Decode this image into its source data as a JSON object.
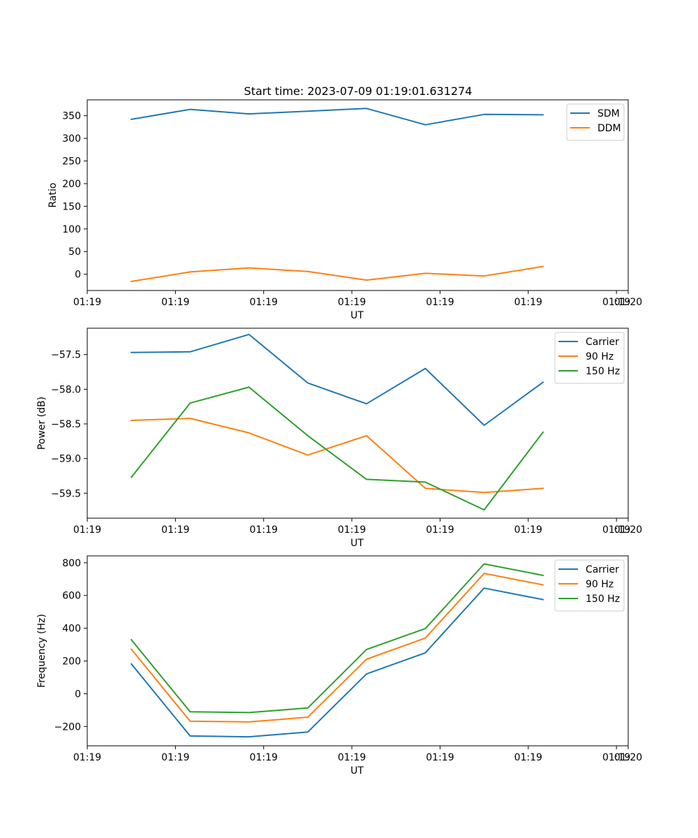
{
  "figure_title": "Start time: 2023-07-09 01:19:01.631274",
  "colors": {
    "blue": "#1f77b4",
    "orange": "#ff7f0e",
    "green": "#2ca02c"
  },
  "chart_data": [
    {
      "type": "line",
      "title": "Start time: 2023-07-09 01:19:01.631274",
      "xlabel": "UT",
      "ylabel": "Ratio",
      "x": [
        0,
        1,
        2,
        3,
        4,
        5,
        6,
        7
      ],
      "xlim": [
        -0.75,
        8.45
      ],
      "xticks": [
        -0.75,
        0.75,
        2.25,
        3.75,
        5.25,
        6.75,
        8.25
      ],
      "xtick_labels": [
        "01:19",
        "01:19",
        "01:19",
        "01:19",
        "01:19",
        "01:19",
        "01:19"
      ],
      "xticks_extra": [
        {
          "value": 8.45,
          "label": "01:20"
        }
      ],
      "ylim": [
        -36,
        385
      ],
      "yticks": [
        0,
        50,
        100,
        150,
        200,
        250,
        300,
        350
      ],
      "ytick_labels": [
        "0",
        "50",
        "100",
        "150",
        "200",
        "250",
        "300",
        "350"
      ],
      "legend": "top-right",
      "series": [
        {
          "name": "SDM",
          "color": "blue",
          "values": [
            342,
            364,
            354,
            360,
            366,
            330,
            353,
            352
          ]
        },
        {
          "name": "DDM",
          "color": "orange",
          "values": [
            -16,
            5,
            14,
            6,
            -13,
            2,
            -4,
            17
          ]
        }
      ]
    },
    {
      "type": "line",
      "title": "",
      "xlabel": "UT",
      "ylabel": "Power (dB)",
      "x": [
        0,
        1,
        2,
        3,
        4,
        5,
        6,
        7
      ],
      "xlim": [
        -0.75,
        8.45
      ],
      "xticks": [
        -0.75,
        0.75,
        2.25,
        3.75,
        5.25,
        6.75,
        8.25
      ],
      "xtick_labels": [
        "01:19",
        "01:19",
        "01:19",
        "01:19",
        "01:19",
        "01:19",
        "01:19"
      ],
      "xticks_extra": [
        {
          "value": 8.45,
          "label": "01:20"
        }
      ],
      "ylim": [
        -59.86,
        -57.12
      ],
      "yticks": [
        -59.5,
        -59.0,
        -58.5,
        -58.0,
        -57.5
      ],
      "ytick_labels": [
        "−59.5",
        "−59.0",
        "−58.5",
        "−58.0",
        "−57.5"
      ],
      "legend": "top-right",
      "series": [
        {
          "name": "Carrier",
          "color": "blue",
          "values": [
            -57.47,
            -57.46,
            -57.21,
            -57.91,
            -58.21,
            -57.7,
            -58.52,
            -57.9
          ]
        },
        {
          "name": "90 Hz",
          "color": "orange",
          "values": [
            -58.45,
            -58.42,
            -58.63,
            -58.95,
            -58.67,
            -59.43,
            -59.49,
            -59.43
          ]
        },
        {
          "name": "150 Hz",
          "color": "green",
          "values": [
            -59.27,
            -58.2,
            -57.97,
            -58.67,
            -59.3,
            -59.34,
            -59.74,
            -58.62
          ]
        }
      ]
    },
    {
      "type": "line",
      "title": "",
      "xlabel": "UT",
      "ylabel": "Frequency (Hz)",
      "x": [
        0,
        1,
        2,
        3,
        4,
        5,
        6,
        7
      ],
      "xlim": [
        -0.75,
        8.45
      ],
      "xticks": [
        -0.75,
        0.75,
        2.25,
        3.75,
        5.25,
        6.75,
        8.25
      ],
      "xtick_labels": [
        "01:19",
        "01:19",
        "01:19",
        "01:19",
        "01:19",
        "01:19",
        "01:19"
      ],
      "xticks_extra": [
        {
          "value": 8.45,
          "label": "01:20"
        }
      ],
      "ylim": [
        -318,
        842
      ],
      "yticks": [
        -200,
        0,
        200,
        400,
        600,
        800
      ],
      "ytick_labels": [
        "−200",
        "0",
        "200",
        "400",
        "600",
        "800"
      ],
      "legend": "top-right",
      "series": [
        {
          "name": "Carrier",
          "color": "blue",
          "values": [
            182,
            -258,
            -263,
            -234,
            121,
            250,
            645,
            575
          ]
        },
        {
          "name": "90 Hz",
          "color": "orange",
          "values": [
            272,
            -168,
            -172,
            -143,
            211,
            340,
            735,
            665
          ]
        },
        {
          "name": "150 Hz",
          "color": "green",
          "values": [
            330,
            -110,
            -115,
            -87,
            270,
            398,
            793,
            723
          ]
        }
      ]
    }
  ]
}
